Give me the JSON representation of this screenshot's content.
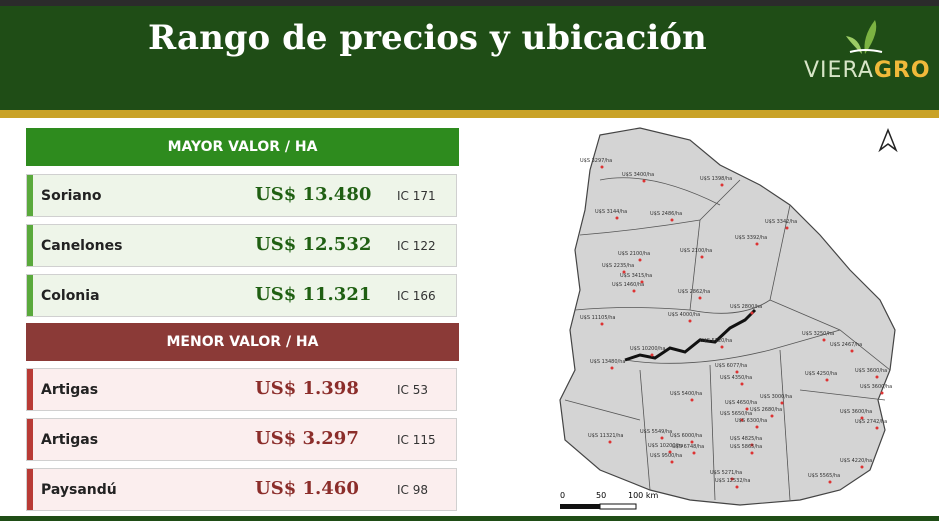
{
  "header": {
    "title": "Rango de precios y ubicación",
    "logo_left": "VIERA",
    "logo_right": "GRO"
  },
  "high": {
    "heading": "MAYOR VALOR / HA",
    "rows": [
      [
        "Soriano",
        "US$ 13.480",
        "IC 171"
      ],
      [
        "Canelones",
        "US$ 12.532",
        "IC 122"
      ],
      [
        "Colonia",
        "US$ 11.321",
        "IC 166"
      ]
    ]
  },
  "low": {
    "heading": "MENOR VALOR / HA",
    "rows": [
      [
        "Artigas",
        "US$ 1.398",
        "IC 53"
      ],
      [
        "Artigas",
        "US$ 3.297",
        "IC 115"
      ],
      [
        "Paysandú",
        "US$ 1.460",
        "IC 98"
      ]
    ]
  },
  "map": {
    "labels": [
      "U$S 3297/ha",
      "U$S 1398/ha",
      "U$S 3400/ha",
      "U$S 3144/ha",
      "U$S 2486/ha",
      "U$S 3342/ha",
      "U$S 3392/ha",
      "U$S 2100/ha",
      "U$S 2100/ha",
      "U$S 2235/ha",
      "U$S 3415/ha",
      "U$S 1460/ha",
      "U$S 2862/ha",
      "U$S 11105/ha",
      "U$S 4000/ha",
      "U$S 2800/ha",
      "U$S 3250/ha",
      "U$S 2467/ha",
      "U$S 10200/ha",
      "U$S 5720/ha",
      "U$S 13480/ha",
      "U$S 6077/ha",
      "U$S 4250/ha",
      "U$S 3600/ha",
      "U$S 4350/ha",
      "U$S 3600/ha",
      "U$S 5400/ha",
      "U$S 3000/ha",
      "U$S 4650/ha",
      "U$S 2680/ha",
      "U$S 5650/ha",
      "U$S 6300/ha",
      "U$S 3600/ha",
      "U$S 2742/ha",
      "U$S 11321/ha",
      "U$S 5549/ha",
      "U$S 6000/ha",
      "U$S 4825/ha",
      "U$S 10200/ha",
      "U$S 6748/ha",
      "U$S 5865/ha",
      "U$S 9500/ha",
      "U$S 4220/ha",
      "U$S 5271/ha",
      "U$S 5565/ha",
      "U$S 12532/ha"
    ],
    "scale": [
      "0",
      "50",
      "100 km"
    ]
  }
}
